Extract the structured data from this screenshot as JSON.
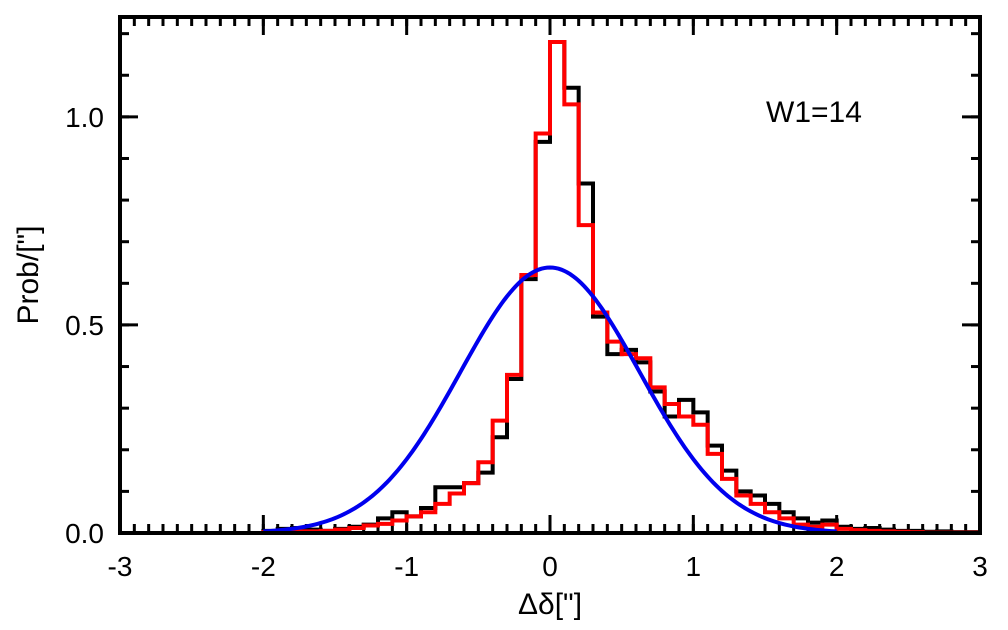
{
  "chart_data": {
    "type": "line",
    "title": "",
    "xlabel": "Δδ[\"]",
    "ylabel": "Prob/[\"]",
    "xlim": [
      -3,
      3
    ],
    "ylim": [
      0,
      1.24
    ],
    "x_ticks": [
      -3,
      -2,
      -1,
      0,
      1,
      2,
      3
    ],
    "x_tick_labels": [
      "-3",
      "-2",
      "-1",
      "0",
      "1",
      "2",
      "3"
    ],
    "y_ticks": [
      0,
      0.5,
      1.0
    ],
    "y_tick_labels": [
      "0.0",
      "0.5",
      "1.0"
    ],
    "grid": false,
    "annotation": "W1=14",
    "bin_width": 0.1,
    "bin_start": -2.0,
    "series": [
      {
        "style": "step",
        "color": "#000000",
        "values": [
          0.005,
          0.01,
          0.012,
          0.008,
          0.005,
          0.01,
          0.015,
          0.02,
          0.035,
          0.05,
          0.04,
          0.06,
          0.11,
          0.11,
          0.12,
          0.145,
          0.23,
          0.37,
          0.61,
          0.94,
          1.18,
          1.07,
          0.84,
          0.52,
          0.43,
          0.44,
          0.41,
          0.34,
          0.28,
          0.32,
          0.29,
          0.21,
          0.15,
          0.1,
          0.09,
          0.07,
          0.05,
          0.035,
          0.025,
          0.03,
          0.015,
          0.01,
          0.012,
          0.008,
          0.005,
          0.005,
          0.003,
          0.004,
          0.002,
          0.002
        ]
      },
      {
        "style": "step",
        "color": "#ff0000",
        "values": [
          0.002,
          0.002,
          0.004,
          0.004,
          0.005,
          0.008,
          0.012,
          0.018,
          0.022,
          0.03,
          0.04,
          0.05,
          0.07,
          0.095,
          0.12,
          0.17,
          0.27,
          0.38,
          0.62,
          0.96,
          1.18,
          1.03,
          0.74,
          0.53,
          0.46,
          0.43,
          0.42,
          0.35,
          0.31,
          0.28,
          0.26,
          0.19,
          0.13,
          0.09,
          0.07,
          0.05,
          0.035,
          0.02,
          0.015,
          0.02,
          0.01,
          0.007,
          0.005,
          0.004,
          0.003,
          0.002,
          0.001,
          0.001,
          0.001,
          0.001
        ]
      },
      {
        "style": "curve",
        "color": "#0000ee",
        "function": "gaussian",
        "mean": 0.0,
        "sigma": 0.625,
        "peak": 0.638,
        "x_range": [
          -2.0,
          2.0
        ]
      }
    ]
  }
}
